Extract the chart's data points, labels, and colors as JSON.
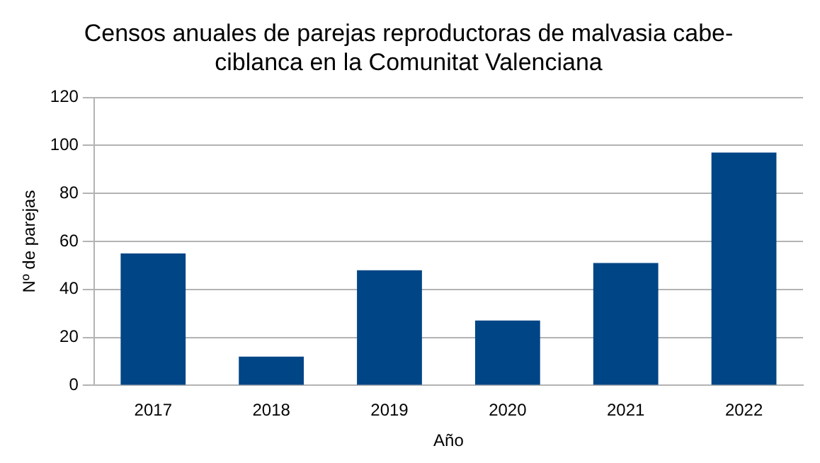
{
  "chart_data": {
    "type": "bar",
    "title": "Censos anuales de parejas reproductoras de malvasia cabe-\nciblanca en la Comunitat Valenciana",
    "xlabel": "Año",
    "ylabel": "Nº de parejas",
    "categories": [
      "2017",
      "2018",
      "2019",
      "2020",
      "2021",
      "2022"
    ],
    "values": [
      55,
      12,
      48,
      27,
      51,
      97
    ],
    "color": "#004586",
    "ylim": [
      0,
      120
    ],
    "yticks": [
      0,
      20,
      40,
      60,
      80,
      100,
      120
    ],
    "grid": "y",
    "legend": false
  }
}
